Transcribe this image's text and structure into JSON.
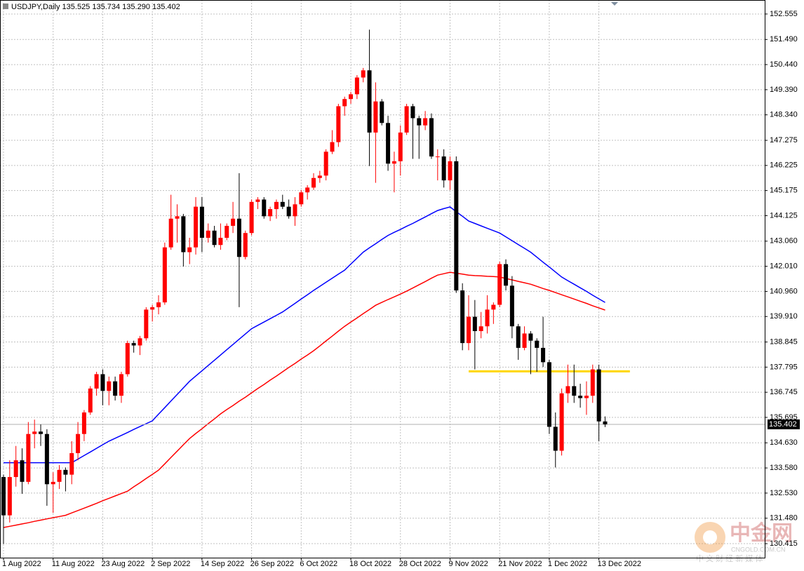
{
  "chart_data": {
    "type": "candlestick",
    "title": "USDJPY,Daily  135.525 135.734 135.290 135.402",
    "categories": [
      "1 Aug 2022",
      null,
      null,
      null,
      null,
      null,
      null,
      null,
      "11 Aug 2022",
      null,
      null,
      null,
      null,
      null,
      null,
      null,
      "23 Aug 2022",
      null,
      null,
      null,
      null,
      null,
      null,
      null,
      "2 Sep 2022",
      null,
      null,
      null,
      null,
      null,
      null,
      null,
      "14 Sep 2022",
      null,
      null,
      null,
      null,
      null,
      null,
      null,
      "26 Sep 2022",
      null,
      null,
      null,
      null,
      null,
      null,
      null,
      "6 Oct 2022",
      null,
      null,
      null,
      null,
      null,
      null,
      null,
      "18 Oct 2022",
      null,
      null,
      null,
      null,
      null,
      null,
      null,
      "28 Oct 2022",
      null,
      null,
      null,
      null,
      null,
      null,
      null,
      "9 Nov 2022",
      null,
      null,
      null,
      null,
      null,
      null,
      null,
      "21 Nov 2022",
      null,
      null,
      null,
      null,
      null,
      null,
      null,
      "1 Dec 2022",
      null,
      null,
      null,
      null,
      null,
      null,
      null,
      "13 Dec 2022",
      null
    ],
    "ohlc": {
      "open": [
        133.2,
        131.6,
        133.2,
        133.9,
        133.0,
        135.0,
        135.1,
        135.0,
        132.9,
        133.0,
        133.5,
        133.3,
        134.2,
        135.0,
        135.9,
        136.9,
        137.5,
        136.8,
        137.2,
        136.6,
        137.5,
        138.8,
        138.7,
        139.0,
        140.2,
        140.3,
        140.5,
        142.8,
        144.0,
        144.1,
        142.6,
        142.8,
        144.5,
        143.2,
        143.5,
        142.9,
        143.2,
        143.7,
        144.0,
        142.4,
        143.4,
        144.7,
        144.8,
        144.1,
        144.4,
        144.7,
        144.5,
        144.1,
        144.6,
        145.1,
        145.3,
        145.7,
        145.8,
        146.8,
        147.2,
        148.7,
        149.0,
        149.2,
        149.9,
        150.2,
        147.6,
        148.9,
        148.0,
        146.3,
        146.4,
        147.6,
        148.7,
        148.2,
        147.9,
        148.2,
        146.6,
        146.6,
        145.6,
        146.4,
        141.0,
        138.8,
        139.9,
        139.3,
        139.5,
        140.2,
        140.4,
        142.1,
        141.2,
        139.5,
        138.6,
        139.2,
        138.9,
        138.6,
        138.0,
        135.3,
        134.3,
        136.7,
        137.0,
        136.6,
        136.5,
        136.6,
        137.7,
        135.525
      ],
      "high": [
        133.3,
        133.9,
        134.5,
        134.4,
        135.5,
        135.6,
        135.4,
        135.2,
        133.4,
        133.7,
        133.6,
        134.7,
        135.5,
        136.0,
        137.0,
        137.6,
        137.7,
        137.4,
        137.4,
        137.6,
        138.9,
        138.9,
        139.1,
        140.3,
        140.4,
        140.8,
        143.0,
        145.0,
        144.6,
        144.2,
        143.2,
        144.9,
        144.9,
        143.8,
        143.7,
        143.8,
        143.8,
        144.7,
        145.9,
        143.5,
        144.8,
        144.9,
        144.9,
        144.5,
        144.8,
        145.0,
        144.8,
        144.9,
        145.2,
        145.4,
        145.9,
        146.0,
        146.9,
        147.7,
        148.8,
        149.1,
        149.3,
        150.0,
        150.3,
        151.9,
        149.7,
        149.0,
        148.3,
        146.8,
        147.9,
        148.8,
        148.8,
        148.3,
        148.5,
        148.4,
        146.9,
        146.9,
        146.6,
        146.6,
        141.3,
        140.8,
        140.6,
        140.1,
        140.8,
        140.5,
        142.2,
        142.3,
        141.6,
        139.6,
        139.5,
        139.3,
        139.0,
        139.9,
        138.1,
        135.9,
        136.9,
        137.9,
        137.9,
        137.1,
        137.2,
        137.9,
        137.9,
        135.734
      ],
      "low": [
        130.4,
        131.3,
        132.8,
        132.5,
        132.9,
        134.4,
        134.5,
        132.0,
        131.7,
        132.7,
        132.6,
        132.9,
        133.9,
        134.7,
        135.8,
        136.6,
        136.2,
        136.2,
        136.4,
        136.3,
        137.4,
        138.4,
        138.3,
        138.9,
        139.7,
        140.0,
        140.4,
        142.7,
        143.0,
        142.0,
        142.1,
        142.5,
        142.6,
        143.0,
        142.8,
        142.7,
        143.1,
        143.4,
        140.3,
        142.3,
        143.3,
        144.4,
        144.0,
        143.9,
        144.0,
        144.4,
        144.0,
        143.7,
        144.5,
        144.8,
        145.2,
        145.5,
        145.6,
        146.7,
        147.0,
        148.3,
        148.8,
        149.0,
        149.7,
        146.2,
        145.5,
        147.9,
        146.0,
        145.1,
        145.8,
        147.5,
        146.5,
        146.5,
        147.7,
        146.5,
        145.6,
        145.3,
        145.2,
        140.9,
        138.5,
        138.5,
        137.7,
        139.0,
        139.2,
        139.6,
        140.3,
        141.0,
        139.0,
        138.1,
        138.5,
        137.5,
        137.6,
        137.8,
        135.0,
        133.6,
        134.1,
        136.3,
        136.3,
        136.1,
        135.8,
        136.3,
        134.7,
        135.29
      ],
      "close": [
        131.6,
        133.2,
        133.9,
        133.0,
        135.0,
        135.1,
        135.0,
        132.9,
        133.0,
        133.5,
        133.3,
        134.2,
        135.0,
        135.9,
        136.9,
        137.5,
        136.8,
        137.2,
        136.6,
        137.5,
        138.8,
        138.7,
        139.0,
        140.2,
        140.3,
        140.5,
        142.8,
        144.0,
        144.1,
        142.6,
        142.8,
        144.5,
        143.2,
        143.5,
        142.9,
        143.2,
        143.7,
        144.0,
        142.4,
        143.4,
        144.7,
        144.8,
        144.1,
        144.4,
        144.7,
        144.5,
        144.1,
        144.6,
        145.1,
        145.3,
        145.7,
        145.8,
        146.8,
        147.2,
        148.7,
        149.0,
        149.2,
        149.9,
        150.2,
        147.6,
        148.9,
        148.0,
        146.3,
        146.4,
        147.6,
        148.7,
        148.2,
        147.9,
        148.2,
        146.6,
        146.6,
        145.6,
        146.4,
        141.0,
        138.8,
        139.9,
        139.3,
        139.5,
        140.2,
        140.4,
        142.1,
        141.2,
        139.5,
        138.6,
        139.2,
        138.9,
        138.6,
        138.0,
        135.3,
        134.3,
        136.7,
        137.0,
        136.6,
        136.5,
        136.6,
        137.7,
        135.525,
        135.402
      ]
    },
    "up_color": "#ff0000",
    "down_color": "#000000",
    "lines": [
      {
        "color": "#0000ff",
        "values": [
          133.8,
          133.8,
          133.8,
          133.8,
          133.8,
          133.8,
          133.8,
          133.8,
          133.8,
          133.8,
          133.8,
          133.8,
          133.95,
          134.1,
          134.25,
          134.4,
          134.55,
          134.7,
          134.82,
          134.94,
          135.06,
          135.19,
          135.31,
          135.43,
          135.55,
          135.83,
          136.1,
          136.38,
          136.65,
          136.93,
          137.2,
          137.42,
          137.64,
          137.86,
          138.08,
          138.3,
          138.52,
          138.74,
          138.96,
          139.18,
          139.4,
          139.54,
          139.68,
          139.82,
          139.96,
          140.1,
          140.28,
          140.46,
          140.64,
          140.82,
          141.0,
          141.17,
          141.34,
          141.51,
          141.68,
          141.85,
          142.1,
          142.35,
          142.6,
          142.78,
          142.95,
          143.13,
          143.3,
          143.43,
          143.55,
          143.68,
          143.8,
          143.94,
          144.07,
          144.21,
          144.34,
          144.42,
          144.49,
          144.29,
          144.1,
          143.9,
          143.8,
          143.7,
          143.6,
          143.5,
          143.4,
          143.24,
          143.08,
          142.92,
          142.76,
          142.6,
          142.39,
          142.18,
          141.98,
          141.77,
          141.56,
          141.41,
          141.26,
          141.11,
          140.96,
          140.8,
          140.65,
          140.5
        ]
      },
      {
        "color": "#ff0000",
        "values": [
          131.09,
          131.14,
          131.19,
          131.24,
          131.29,
          131.35,
          131.4,
          131.45,
          131.5,
          131.55,
          131.6,
          131.7,
          131.8,
          131.9,
          132.0,
          132.1,
          132.21,
          132.31,
          132.41,
          132.51,
          132.61,
          132.79,
          132.96,
          133.14,
          133.31,
          133.49,
          133.75,
          134.02,
          134.28,
          134.55,
          134.81,
          135.02,
          135.22,
          135.43,
          135.63,
          135.84,
          136.02,
          136.19,
          136.37,
          136.54,
          136.72,
          136.9,
          137.07,
          137.25,
          137.42,
          137.6,
          137.78,
          137.95,
          138.13,
          138.3,
          138.48,
          138.68,
          138.89,
          139.09,
          139.3,
          139.5,
          139.68,
          139.85,
          140.03,
          140.2,
          140.38,
          140.5,
          140.62,
          140.73,
          140.85,
          140.97,
          141.1,
          141.24,
          141.37,
          141.51,
          141.64,
          141.7,
          141.76,
          141.72,
          141.68,
          141.64,
          141.62,
          141.61,
          141.59,
          141.58,
          141.56,
          141.5,
          141.44,
          141.38,
          141.32,
          141.26,
          141.17,
          141.08,
          141.0,
          140.91,
          140.82,
          140.73,
          140.64,
          140.55,
          140.46,
          140.36,
          140.27,
          140.18
        ]
      }
    ],
    "hline": {
      "value": 137.62,
      "color": "#ffd700"
    },
    "last_price": 135.402,
    "ylim": [
      129.83,
      153.14
    ],
    "yticks": [
      152.555,
      {
        "value": 151.49,
        "label": "151.490"
      },
      {
        "value": 150.44,
        "label": "150.440"
      },
      {
        "value": 149.39,
        "label": "149.390"
      },
      {
        "value": 148.34,
        "label": "148.340"
      },
      147.275,
      146.225,
      145.175,
      144.125,
      {
        "value": 143.06,
        "label": "143.060"
      },
      {
        "value": 142.01,
        "label": "142.010"
      },
      {
        "value": 140.96,
        "label": "140.960"
      },
      {
        "value": 139.91,
        "label": "139.910"
      },
      138.845,
      137.795,
      136.745,
      135.695,
      {
        "value": 134.63,
        "label": "134.630"
      },
      {
        "value": 133.58,
        "label": "133.580"
      },
      {
        "value": 132.53,
        "label": "132.530"
      },
      {
        "value": 131.48,
        "label": "131.480"
      },
      130.415
    ],
    "grid": true,
    "watermark": {
      "logo": "中金网",
      "site": "CNGOLD.COM.CN",
      "slogan": "中 文 财 经 新 媒 体"
    }
  }
}
